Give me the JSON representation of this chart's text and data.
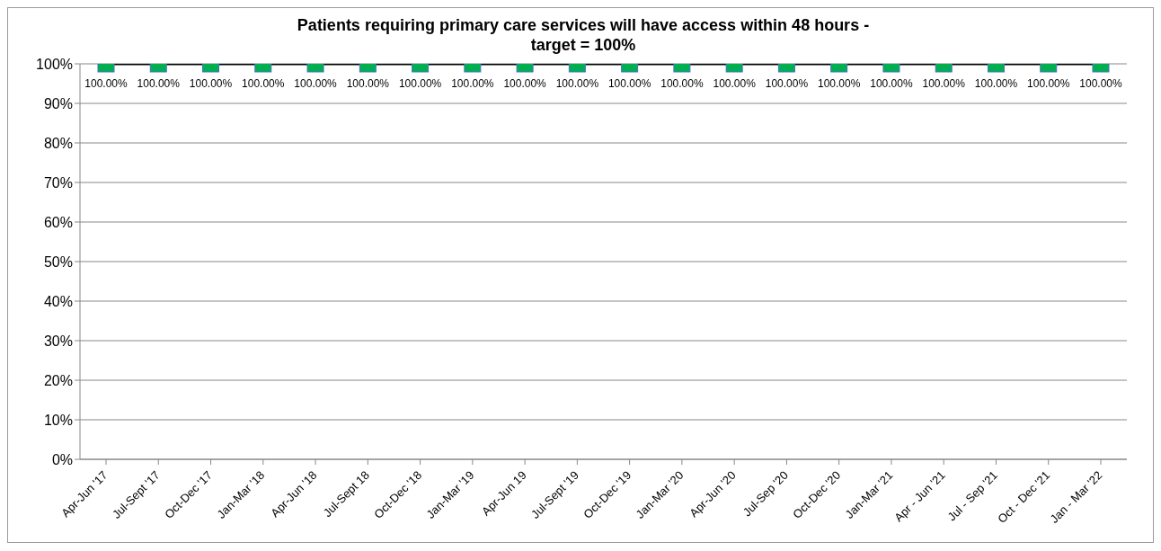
{
  "chart_data": {
    "type": "line",
    "title": "Patients requiring primary care services will have access within 48 hours - target = 100%",
    "categories": [
      "Apr-Jun '17",
      "Jul-Sept '17",
      "Oct-Dec '17",
      "Jan-Mar '18",
      "Apr-Jun '18",
      "Jul-Sept 18",
      "Oct-Dec '18",
      "Jan-Mar '19",
      "Apr-Jun 19",
      "Jul-Sept '19",
      "Oct-Dec '19",
      "Jan-Mar '20",
      "Apr-Jun '20",
      "Jul-Sep '20",
      "Oct-Dec '20",
      "Jan-Mar '21",
      "Apr - Jun '21",
      "Jul - Sep '21",
      "Oct - Dec '21",
      "Jan - Mar '22"
    ],
    "series": [
      {
        "color": "#00b050",
        "values": [
          100,
          100,
          100,
          100,
          100,
          100,
          100,
          100,
          100,
          100,
          100,
          100,
          100,
          100,
          100,
          100,
          100,
          100,
          100,
          100
        ],
        "value_labels": [
          "100.00%",
          "100.00%",
          "100.00%",
          "100.00%",
          "100.00%",
          "100.00%",
          "100.00%",
          "100.00%",
          "100.00%",
          "100.00%",
          "100.00%",
          "100.00%",
          "100.00%",
          "100.00%",
          "100.00%",
          "100.00%",
          "100.00%",
          "100.00%",
          "100.00%",
          "100.00%"
        ]
      }
    ],
    "ylim": [
      0,
      100
    ],
    "yticks": [
      {
        "value": 0,
        "label": "0%"
      },
      {
        "value": 10,
        "label": "10%"
      },
      {
        "value": 20,
        "label": "20%"
      },
      {
        "value": 30,
        "label": "30%"
      },
      {
        "value": 40,
        "label": "40%"
      },
      {
        "value": 50,
        "label": "50%"
      },
      {
        "value": 60,
        "label": "60%"
      },
      {
        "value": 70,
        "label": "70%"
      },
      {
        "value": 80,
        "label": "80%"
      },
      {
        "value": 90,
        "label": "90%"
      },
      {
        "value": 100,
        "label": "100%"
      }
    ],
    "grid": "y",
    "marker": "square",
    "line_style": "solid",
    "legend": false
  }
}
